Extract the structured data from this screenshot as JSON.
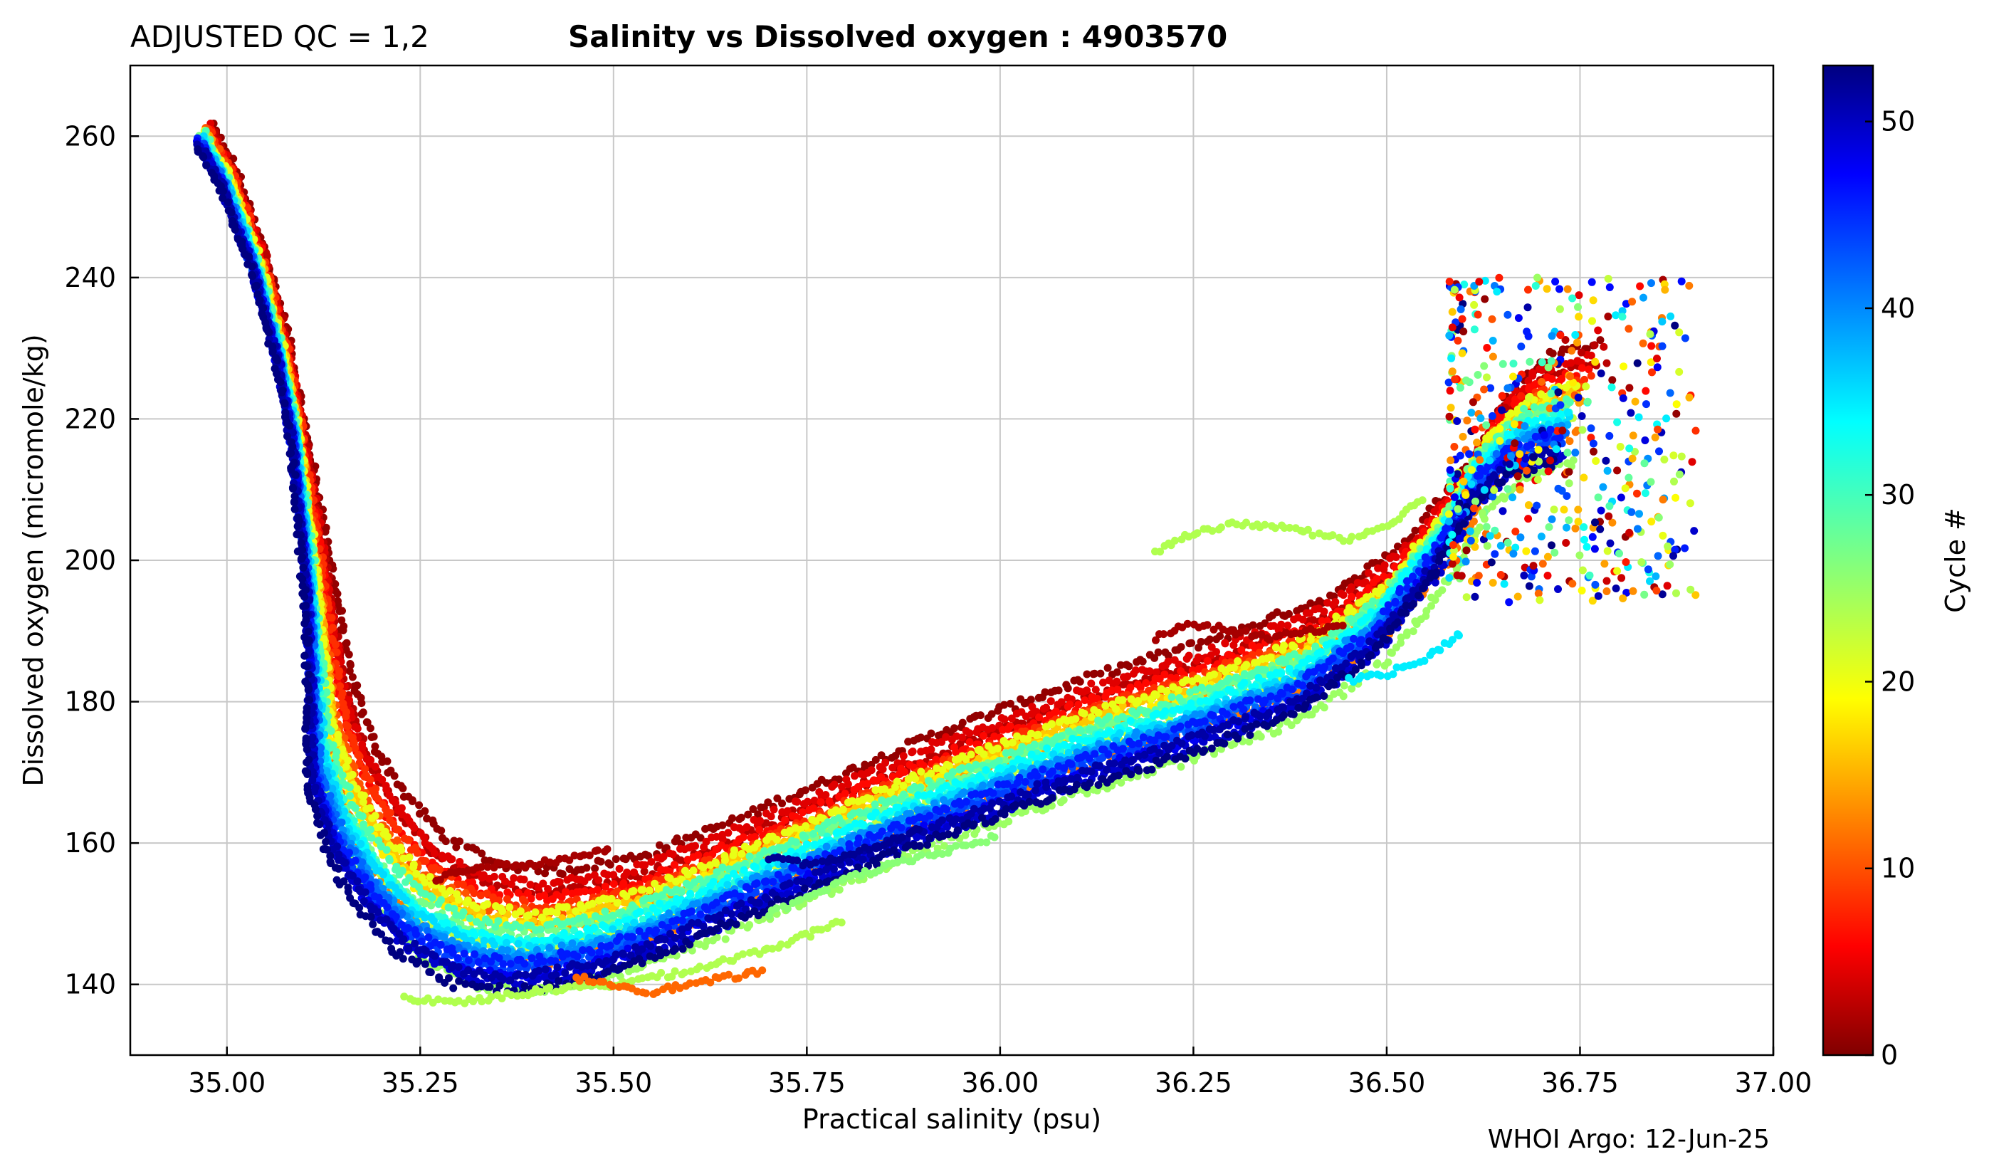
{
  "header": {
    "qc_label": "ADJUSTED QC = 1,2",
    "title": "Salinity vs Dissolved oxygen : 4903570"
  },
  "footer": {
    "credit": "WHOI Argo: 12-Jun-25"
  },
  "chart_data": {
    "type": "scatter",
    "xlabel": "Practical salinity  (psu)",
    "ylabel": "Dissolved oxygen  (micromole/kg)",
    "xlim": [
      34.875,
      37.0
    ],
    "ylim": [
      130,
      270
    ],
    "xticks": [
      35.0,
      35.25,
      35.5,
      35.75,
      36.0,
      36.25,
      36.5,
      36.75,
      37.0
    ],
    "xtick_labels": [
      "35.00",
      "35.25",
      "35.50",
      "35.75",
      "36.00",
      "36.25",
      "36.50",
      "36.75",
      "37.00"
    ],
    "yticks": [
      140,
      160,
      180,
      200,
      220,
      240,
      260
    ],
    "ytick_labels": [
      "140",
      "160",
      "180",
      "200",
      "220",
      "240",
      "260"
    ],
    "grid": true,
    "colormap": "jet_reversed",
    "colorbar": {
      "label": "Cycle #",
      "range": [
        0,
        53
      ],
      "ticks": [
        0,
        10,
        20,
        30,
        40,
        50
      ],
      "tick_labels": [
        "0",
        "10",
        "20",
        "30",
        "40",
        "50"
      ]
    },
    "profile_template": {
      "salinity": [
        34.97,
        35.0,
        35.04,
        35.07,
        35.09,
        35.11,
        35.13,
        35.16,
        35.2,
        35.25,
        35.32,
        35.4,
        35.5,
        35.6,
        35.75,
        35.9,
        36.0,
        36.1,
        36.25,
        36.4,
        36.5,
        36.58,
        36.63,
        36.68,
        36.75
      ],
      "oxygen": [
        260,
        254,
        242,
        230,
        218,
        200,
        175,
        165,
        158,
        152,
        148,
        147,
        149,
        153,
        160,
        167,
        171,
        175,
        180,
        186,
        194,
        205,
        215,
        220,
        222
      ]
    },
    "profiles": [
      {
        "cycle": 1,
        "ds": 0.03,
        "do": 9
      },
      {
        "cycle": 3,
        "ds": 0.025,
        "do": 6
      },
      {
        "cycle": 5,
        "ds": 0.02,
        "do": 7
      },
      {
        "cycle": 7,
        "ds": 0.015,
        "do": 5
      },
      {
        "cycle": 9,
        "ds": 0.02,
        "do": 4
      },
      {
        "cycle": 11,
        "ds": 0.01,
        "do": 3
      },
      {
        "cycle": 13,
        "ds": 0.005,
        "do": -4
      },
      {
        "cycle": 15,
        "ds": 0.01,
        "do": 1
      },
      {
        "cycle": 17,
        "ds": 0.005,
        "do": 2
      },
      {
        "cycle": 19,
        "ds": 0.0,
        "do": 1
      },
      {
        "cycle": 21,
        "ds": 0.005,
        "do": 3
      },
      {
        "cycle": 23,
        "ds": -0.005,
        "do": -2
      },
      {
        "cycle": 25,
        "ds": 0.0,
        "do": -8
      },
      {
        "cycle": 27,
        "ds": -0.01,
        "do": 0
      },
      {
        "cycle": 29,
        "ds": 0.0,
        "do": 1
      },
      {
        "cycle": 31,
        "ds": -0.005,
        "do": -1
      },
      {
        "cycle": 33,
        "ds": -0.01,
        "do": -1
      },
      {
        "cycle": 35,
        "ds": -0.005,
        "do": -2
      },
      {
        "cycle": 37,
        "ds": -0.01,
        "do": -3
      },
      {
        "cycle": 39,
        "ds": -0.015,
        "do": -3
      },
      {
        "cycle": 41,
        "ds": -0.01,
        "do": -4
      },
      {
        "cycle": 43,
        "ds": -0.015,
        "do": -5
      },
      {
        "cycle": 45,
        "ds": -0.02,
        "do": -4
      },
      {
        "cycle": 47,
        "ds": -0.02,
        "do": -6
      },
      {
        "cycle": 49,
        "ds": -0.015,
        "do": -7
      },
      {
        "cycle": 51,
        "ds": -0.02,
        "do": -6
      },
      {
        "cycle": 53,
        "ds": -0.025,
        "do": -8
      }
    ],
    "extra_segments": [
      {
        "cycle": 24,
        "salinity": [
          35.23,
          35.3,
          35.4,
          35.5,
          35.6,
          35.7,
          35.8
        ],
        "oxygen": [
          138,
          137.5,
          139,
          140,
          142,
          145,
          149
        ]
      },
      {
        "cycle": 12,
        "salinity": [
          35.45,
          35.5,
          35.55,
          35.6,
          35.65,
          35.7
        ],
        "oxygen": [
          141,
          140,
          139,
          140,
          141,
          142
        ]
      },
      {
        "cycle": 24,
        "salinity": [
          36.2,
          36.25,
          36.3,
          36.35,
          36.4,
          36.45,
          36.5,
          36.55
        ],
        "oxygen": [
          201,
          204,
          205,
          205,
          204,
          203,
          205,
          209
        ]
      },
      {
        "cycle": 2,
        "salinity": [
          35.27,
          35.3,
          35.35,
          35.4,
          35.45,
          35.5
        ],
        "oxygen": [
          155,
          156,
          157,
          157,
          158,
          159
        ]
      },
      {
        "cycle": 2,
        "salinity": [
          36.2,
          36.25,
          36.3,
          36.35,
          36.4,
          36.45
        ],
        "oxygen": [
          189,
          191,
          190,
          189,
          190,
          191
        ]
      },
      {
        "cycle": 34,
        "salinity": [
          36.45,
          36.5,
          36.55,
          36.6
        ],
        "oxygen": [
          183,
          184,
          186,
          190
        ]
      },
      {
        "cycle": 52,
        "salinity": [
          35.7,
          35.75,
          35.8,
          35.85,
          35.9
        ],
        "oxygen": [
          158,
          157,
          158,
          160,
          162
        ]
      },
      {
        "cycle": 26,
        "salinity": [
          35.7,
          35.75,
          35.8,
          35.9,
          36.0
        ],
        "oxygen": [
          150,
          152,
          155,
          158,
          161
        ]
      }
    ],
    "surface_cluster": {
      "salinity_range": [
        36.58,
        36.9
      ],
      "oxygen_range": [
        194,
        240
      ]
    }
  }
}
